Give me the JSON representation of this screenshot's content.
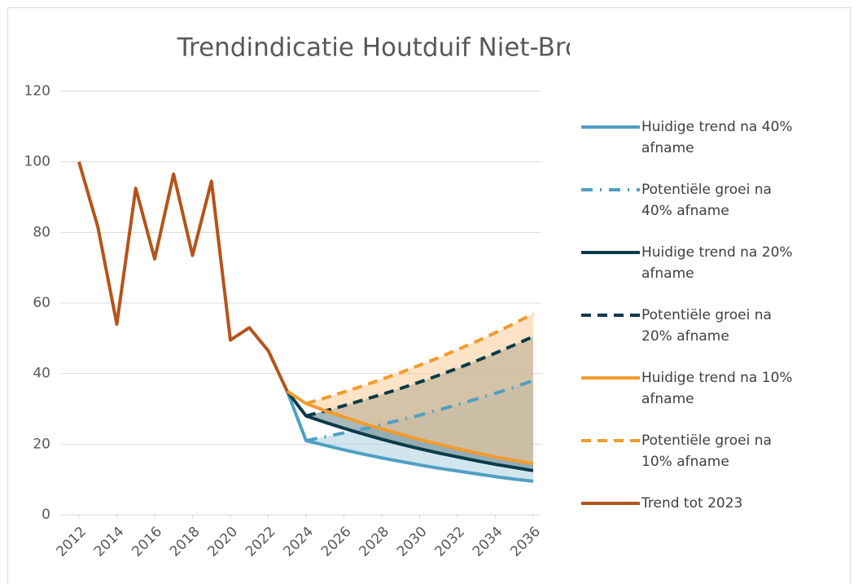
{
  "chart_data": {
    "type": "line",
    "title": "Trendindicatie Houtduif Niet-Broedvogel",
    "x": [
      2012,
      2013,
      2014,
      2015,
      2016,
      2017,
      2018,
      2019,
      2020,
      2021,
      2022,
      2023,
      2024,
      2025,
      2026,
      2027,
      2028,
      2029,
      2030,
      2031,
      2032,
      2033,
      2034,
      2035,
      2036
    ],
    "series": [
      {
        "name": "Huidige trend na 40% afname",
        "color": "#4f9fc4",
        "dash": "solid",
        "values": [
          null,
          null,
          null,
          null,
          null,
          null,
          null,
          null,
          null,
          null,
          null,
          35,
          21,
          19.7,
          18.4,
          17.2,
          16.1,
          15.1,
          14.1,
          13.2,
          12.4,
          11.6,
          10.8,
          10.1,
          9.5
        ]
      },
      {
        "name": "Potentiële groei na 40% afname",
        "color": "#4f9fc4",
        "dash": "dash-dot",
        "fill_color": "#a9cfe0",
        "values": [
          null,
          null,
          null,
          null,
          null,
          null,
          null,
          null,
          null,
          null,
          null,
          null,
          21,
          22.1,
          23.2,
          24.3,
          25.6,
          26.9,
          28.2,
          29.7,
          31.2,
          32.8,
          34.4,
          36.2,
          38
        ]
      },
      {
        "name": "Huidige trend na 20% afname",
        "color": "#0b3a4a",
        "dash": "solid",
        "values": [
          null,
          null,
          null,
          null,
          null,
          null,
          null,
          null,
          null,
          null,
          null,
          35,
          28,
          26.2,
          24.5,
          22.9,
          21.4,
          20.0,
          18.7,
          17.5,
          16.4,
          15.3,
          14.3,
          13.4,
          12.5
        ]
      },
      {
        "name": "Potentiële groei na 20% afname",
        "color": "#0b3a4a",
        "dash": "dash",
        "fill_color": "#5f7f86",
        "values": [
          null,
          null,
          null,
          null,
          null,
          null,
          null,
          null,
          null,
          null,
          null,
          null,
          28,
          29.4,
          30.9,
          32.5,
          34.1,
          35.8,
          37.6,
          39.5,
          41.5,
          43.6,
          45.8,
          48.1,
          50.5
        ]
      },
      {
        "name": "Huidige trend na 10% afname",
        "color": "#f39a2d",
        "dash": "solid",
        "values": [
          null,
          null,
          null,
          null,
          null,
          null,
          null,
          null,
          null,
          null,
          null,
          35,
          31.5,
          29.5,
          27.7,
          25.9,
          24.3,
          22.8,
          21.3,
          20.0,
          18.7,
          17.5,
          16.4,
          15.4,
          14.5
        ]
      },
      {
        "name": "Potentiële groei na 10% afname",
        "color": "#f39a2d",
        "dash": "dash",
        "fill_color": "#f9cc96",
        "values": [
          null,
          null,
          null,
          null,
          null,
          null,
          null,
          null,
          null,
          null,
          null,
          null,
          31.5,
          33.1,
          34.8,
          36.5,
          38.4,
          40.3,
          42.4,
          44.5,
          46.8,
          49.1,
          51.6,
          54.2,
          57
        ]
      },
      {
        "name": "Trend tot 2023",
        "color": "#b5541a",
        "dash": "solid",
        "values": [
          100,
          81.5,
          54,
          92.5,
          72.5,
          96.5,
          73.5,
          94.5,
          49.5,
          53,
          46.5,
          35,
          null,
          null,
          null,
          null,
          null,
          null,
          null,
          null,
          null,
          null,
          null,
          null,
          null
        ]
      }
    ],
    "xlim": [
      2012,
      2036
    ],
    "xticks": [
      2012,
      2014,
      2016,
      2018,
      2020,
      2022,
      2024,
      2026,
      2028,
      2030,
      2032,
      2034,
      2036
    ],
    "ylim": [
      0,
      120
    ],
    "yticks": [
      0,
      20,
      40,
      60,
      80,
      100,
      120
    ],
    "grid": true,
    "legend": "right"
  }
}
